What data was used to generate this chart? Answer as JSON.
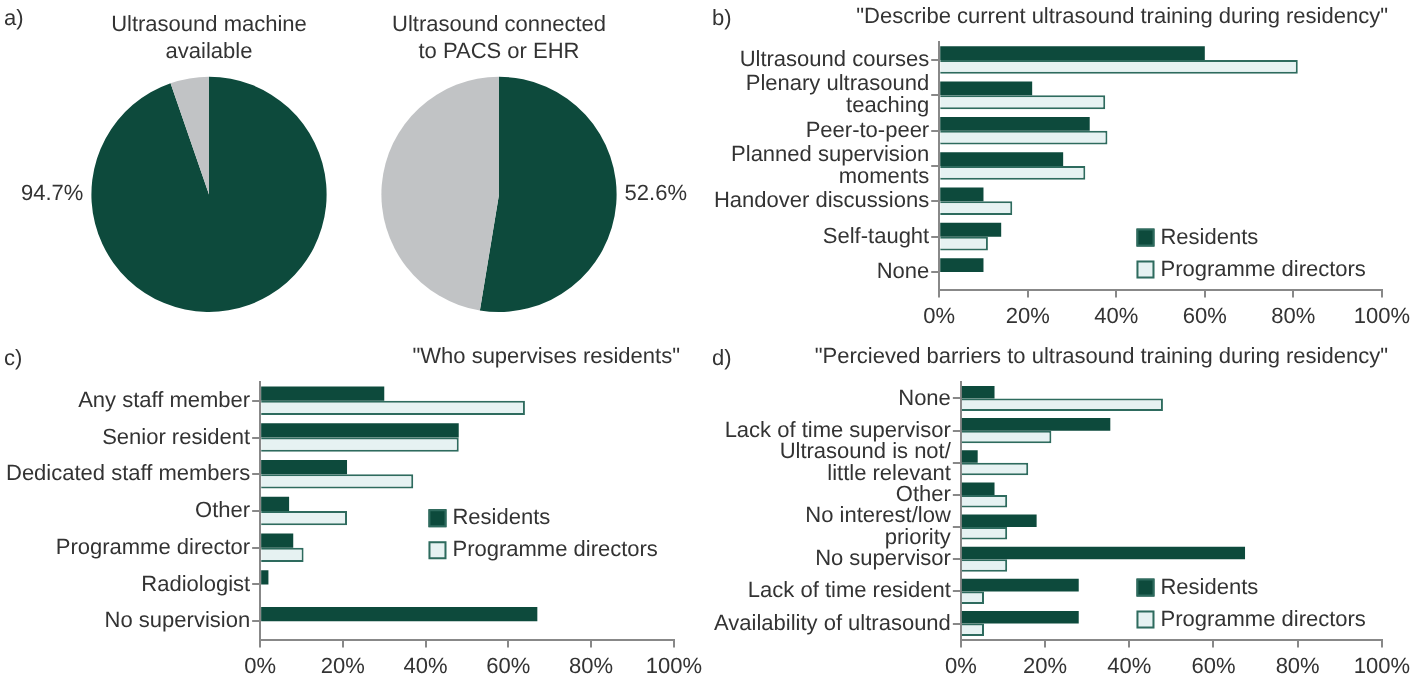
{
  "chart_data": [
    {
      "type": "pie",
      "title": "Ultrasound machine available",
      "annotations": [
        "a)"
      ],
      "categories": [
        null,
        null
      ],
      "values": [
        94.7,
        5.3
      ],
      "colors": [
        "#0d4a3c",
        "#c1c3c5"
      ],
      "value_labels": [
        "94.7%",
        null
      ]
    },
    {
      "type": "pie",
      "title": "Ultrasound connected to PACS or EHR",
      "categories": [
        null,
        null
      ],
      "values": [
        52.6,
        47.4
      ],
      "colors": [
        "#0d4a3c",
        "#c1c3c5"
      ],
      "value_labels": [
        "52.6%",
        null
      ]
    },
    {
      "type": "bar",
      "orientation": "horizontal",
      "title": "\"Describe current ultrasound training during residency\"",
      "annotations": [
        "b)"
      ],
      "categories": [
        "Ultrasound courses",
        "Plenary ultrasound\nteaching",
        "Peer-to-peer",
        "Planned supervision\nmoments",
        "Handover discussions",
        "Self-taught",
        "None"
      ],
      "series": [
        {
          "name": "Residents",
          "color": "#0d4a3c",
          "values": [
            60,
            21,
            34,
            28,
            10,
            14,
            10
          ]
        },
        {
          "name": "Programme directors",
          "color": "#e6f2f2",
          "values": [
            81,
            37.5,
            38,
            33,
            16.5,
            11,
            null
          ]
        }
      ],
      "xlim": [
        0,
        100
      ],
      "xticks": [
        {
          "value": 0,
          "label": "0%"
        },
        {
          "value": 20,
          "label": "20%"
        },
        {
          "value": 40,
          "label": "40%"
        },
        {
          "value": 60,
          "label": "60%"
        },
        {
          "value": 80,
          "label": "80%"
        },
        {
          "value": 100,
          "label": "100%"
        }
      ],
      "legend": "bottom right"
    },
    {
      "type": "bar",
      "orientation": "horizontal",
      "title": "\"Who supervises residents\"",
      "annotations": [
        "c)"
      ],
      "categories": [
        "Any staff member",
        "Senior resident",
        "Dedicated staff members",
        "Other",
        "Programme director",
        "Radiologist",
        "No supervision"
      ],
      "series": [
        {
          "name": "Residents",
          "color": "#0d4a3c",
          "values": [
            30,
            48,
            21,
            7,
            8,
            2,
            67
          ]
        },
        {
          "name": "Programme directors",
          "color": "#e6f2f2",
          "values": [
            64,
            48,
            37,
            21,
            10.5,
            null,
            null
          ]
        }
      ],
      "xlim": [
        0,
        100
      ],
      "xticks": [
        {
          "value": 0,
          "label": "0%"
        },
        {
          "value": 20,
          "label": "20%"
        },
        {
          "value": 40,
          "label": "40%"
        },
        {
          "value": 60,
          "label": "60%"
        },
        {
          "value": 80,
          "label": "80%"
        },
        {
          "value": 100,
          "label": "100%"
        }
      ],
      "legend": "right"
    },
    {
      "type": "bar",
      "orientation": "horizontal",
      "title": "\"Percieved barriers to ultrasound training during residency\"",
      "annotations": [
        "d)"
      ],
      "categories": [
        "None",
        "Lack of time supervisor",
        "Ultrasound is not/\nlittle relevant",
        "Other",
        "No interest/low\npriority",
        "No supervisor",
        "Lack of time resident",
        "Availability of ultrasound"
      ],
      "series": [
        {
          "name": "Residents",
          "color": "#0d4a3c",
          "values": [
            8,
            35.5,
            4,
            8,
            18,
            67.5,
            28,
            28
          ]
        },
        {
          "name": "Programme directors",
          "color": "#e6f2f2",
          "values": [
            48,
            21.5,
            16,
            11,
            11,
            11,
            5.5,
            5.5
          ]
        }
      ],
      "xlim": [
        0,
        100
      ],
      "xticks": [
        {
          "value": 0,
          "label": "0%"
        },
        {
          "value": 20,
          "label": "20%"
        },
        {
          "value": 40,
          "label": "40%"
        },
        {
          "value": 60,
          "label": "60%"
        },
        {
          "value": 80,
          "label": "80%"
        },
        {
          "value": 100,
          "label": "100%"
        }
      ],
      "legend": "bottom right"
    }
  ]
}
